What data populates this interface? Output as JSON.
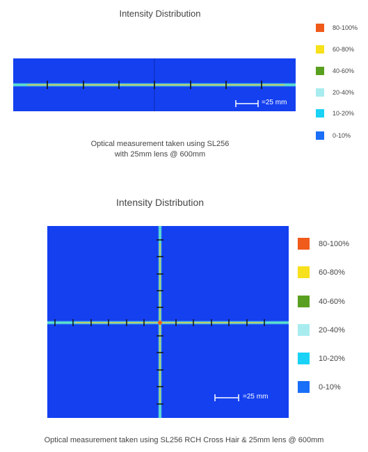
{
  "top": {
    "title": "Intensity Distribution",
    "caption_line1": "Optical measurement taken using SL256",
    "caption_line2": "with 25mm lens @ 600mm",
    "scale_label": "=25 mm"
  },
  "bottom": {
    "title": "Intensity Distribution",
    "caption": "Optical measurement taken using SL256 RCH Cross Hair & 25mm lens @ 600mm",
    "scale_label": "=25 mm"
  },
  "legend": [
    {
      "label": "80-100%",
      "color": "#f05a1a"
    },
    {
      "label": "60-80%",
      "color": "#f7e01c"
    },
    {
      "label": "40-60%",
      "color": "#5aa020"
    },
    {
      "label": "20-40%",
      "color": "#a8ecef"
    },
    {
      "label": "10-20%",
      "color": "#19d2f5"
    },
    {
      "label": "0-10%",
      "color": "#1a6ef7"
    }
  ],
  "colors": {
    "background_field": "#1440f0",
    "beam_core": "#f2c23a",
    "beam_glow": "#5ee3c8"
  }
}
